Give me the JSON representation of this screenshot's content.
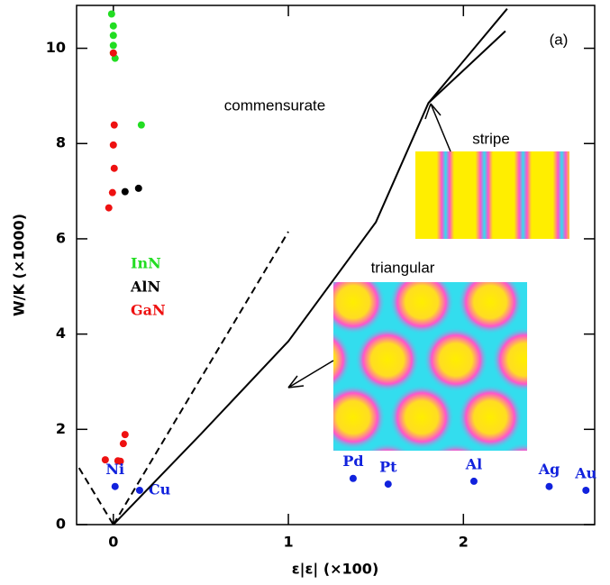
{
  "chart_data": {
    "type": "scatter",
    "xlabel": "ε|ε| (×100)",
    "ylabel": "W/K (×1000)",
    "xlim": [
      -0.21,
      2.75
    ],
    "ylim": [
      0,
      10.9
    ],
    "xticks": [
      0,
      1,
      2
    ],
    "yticks": [
      0,
      2,
      4,
      6,
      8,
      10
    ],
    "annotations": [
      "commensurate",
      "stripe",
      "triangular",
      "(a)"
    ],
    "series": [
      {
        "name": "InN",
        "color": "#22dd22",
        "x": [
          -0.01,
          0,
          0,
          0,
          0,
          0.01,
          0.16
        ],
        "values": [
          10.72,
          10.47,
          10.27,
          10.06,
          9.9,
          9.79,
          8.39
        ]
      },
      {
        "name": "AlN",
        "color": "#000000",
        "x": [
          0.067,
          0.144
        ],
        "values": [
          6.99,
          7.06
        ]
      },
      {
        "name": "GaN",
        "color": "#ee1111",
        "x": [
          0,
          0.005,
          0,
          0.005,
          -0.005,
          -0.026,
          -0.046,
          0.026,
          0.04,
          0.057,
          0.067
        ],
        "values": [
          9.9,
          8.39,
          7.97,
          7.48,
          6.97,
          6.65,
          1.36,
          1.34,
          1.33,
          1.7,
          1.89
        ]
      },
      {
        "color": "#1122dd",
        "labels": [
          "Ni",
          "Cu",
          "Pd",
          "Pt",
          "Al",
          "Ag",
          "Au"
        ],
        "x": [
          0.01,
          0.15,
          1.37,
          1.57,
          2.06,
          2.49,
          2.7
        ],
        "values": [
          0.8,
          0.72,
          0.97,
          0.85,
          0.91,
          0.8,
          0.72
        ]
      },
      {
        "type": "line",
        "color": "#000000",
        "x": [
          0,
          0.5,
          1,
          1.5,
          1.8,
          2.25
        ],
        "values": [
          0,
          1.9,
          3.85,
          6.35,
          8.85,
          10.83
        ]
      },
      {
        "type": "line",
        "color": "#000000",
        "x": [
          1.8,
          2.24
        ],
        "values": [
          8.85,
          10.36
        ]
      },
      {
        "type": "line",
        "dashed": true,
        "color": "#000000",
        "x": [
          0,
          1
        ],
        "values": [
          0,
          6.15
        ]
      },
      {
        "type": "line",
        "dashed": true,
        "color": "#000000",
        "x": [
          -0.196,
          0
        ],
        "values": [
          1.19,
          0
        ]
      }
    ]
  }
}
